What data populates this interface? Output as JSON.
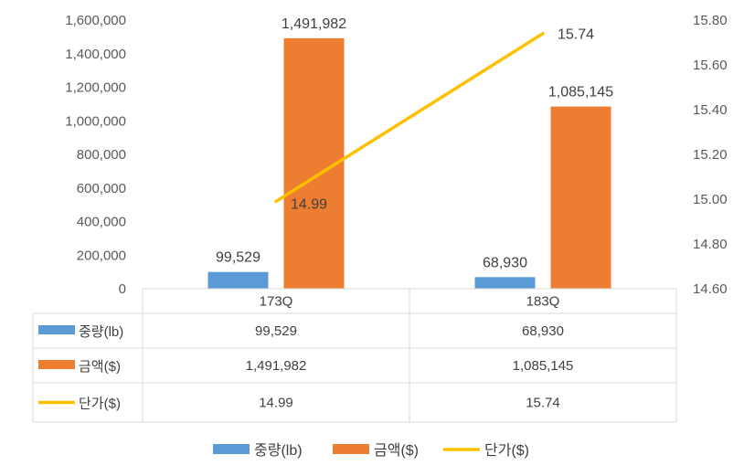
{
  "chart_data": {
    "type": "bar",
    "categories": [
      "173Q",
      "183Q"
    ],
    "series": [
      {
        "name": "중량(lb)",
        "type": "bar",
        "axis": "left",
        "color": "#5B9BD5",
        "values": [
          99529,
          68930
        ],
        "labels": [
          "99,529",
          "68,930"
        ]
      },
      {
        "name": "금액($)",
        "type": "bar",
        "axis": "left",
        "color": "#ED7D31",
        "values": [
          1491982,
          1085145
        ],
        "labels": [
          "1,491,982",
          "1,085,145"
        ]
      },
      {
        "name": "단가($)",
        "type": "line",
        "axis": "right",
        "color": "#FFC000",
        "values": [
          14.99,
          15.74
        ],
        "labels": [
          "14.99",
          "15.74"
        ]
      }
    ],
    "y_left": {
      "min": 0,
      "max": 1600000,
      "ticks": [
        "0",
        "200,000",
        "400,000",
        "600,000",
        "800,000",
        "1,000,000",
        "1,200,000",
        "1,400,000",
        "1,600,000"
      ]
    },
    "y_right": {
      "min": 14.6,
      "max": 15.8,
      "ticks": [
        "14.60",
        "14.80",
        "15.00",
        "15.20",
        "15.40",
        "15.60",
        "15.80"
      ]
    },
    "data_table": true,
    "legend": "bottom",
    "grid": false
  }
}
